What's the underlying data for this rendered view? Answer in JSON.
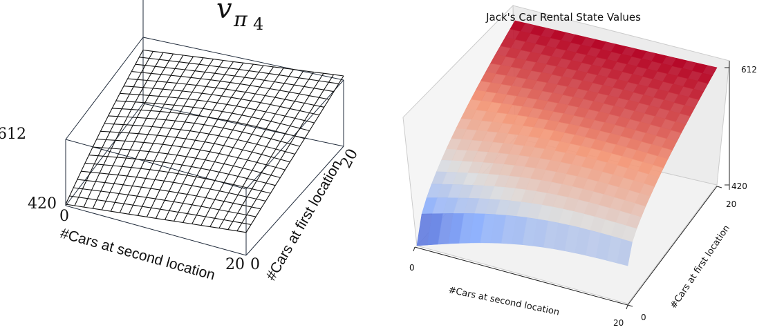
{
  "chart_data": [
    {
      "type": "surface",
      "style": "wireframe",
      "title_main": "v",
      "title_sub": "π",
      "title_sub2": "4",
      "xlabel": "#Cars at second location",
      "ylabel": "#Cars at first location",
      "x_ticks": [
        "0",
        "20"
      ],
      "y_ticks": [
        "0",
        "20"
      ],
      "z_ticks": [
        "420",
        "612"
      ],
      "x_range": [
        0,
        20
      ],
      "y_range": [
        0,
        20
      ],
      "z_range": [
        420,
        612
      ],
      "corner_values": {
        "x0_y0": 420,
        "x20_y0": 480,
        "x0_y20": 565,
        "x20_y20": 612
      },
      "grid_count": 21,
      "colors": {
        "mesh": "#111111",
        "box": "#1f2a3a"
      }
    },
    {
      "type": "surface",
      "style": "colormap",
      "colormap": "coolwarm",
      "title": "Jack's Car Rental State Values",
      "xlabel": "#Cars at second location",
      "ylabel": "#Cars at first location",
      "x_ticks": [
        "0",
        "20"
      ],
      "y_ticks": [
        "0",
        "20"
      ],
      "z_ticks": [
        "420",
        "612"
      ],
      "x_range": [
        0,
        20
      ],
      "y_range": [
        0,
        20
      ],
      "z_range": [
        420,
        612
      ],
      "corner_values": {
        "x0_y0": 420,
        "x20_y0": 482,
        "x0_y20": 612,
        "x20_y20": 612
      },
      "grid_count": 21,
      "colors": {
        "low": "#3b4cc0",
        "mid": "#dddddd",
        "high": "#b40426",
        "pane": "#f2f2f2",
        "pane_edge": "#cccccc"
      }
    }
  ]
}
